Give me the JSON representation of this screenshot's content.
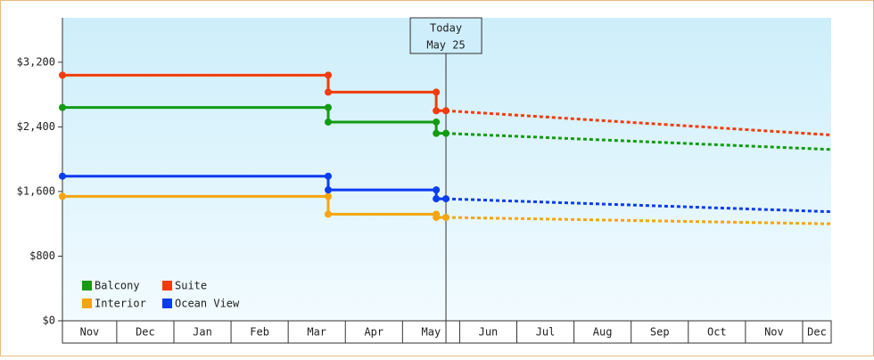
{
  "chart_data": {
    "type": "line",
    "x": [
      0.05,
      4.7,
      4.7,
      6.59,
      6.59,
      6.76
    ],
    "forecast_x": [
      6.76,
      13.5
    ],
    "xlim": [
      0.05,
      13.5
    ],
    "xticks": [
      1,
      2,
      3,
      4,
      5,
      6,
      7,
      8,
      9,
      10,
      11,
      12,
      13
    ],
    "x_labels": [
      "Nov",
      "Dec",
      "Jan",
      "Feb",
      "Mar",
      "Apr",
      "May",
      "Jun",
      "Jul",
      "Aug",
      "Sep",
      "Oct",
      "Nov",
      "Dec"
    ],
    "ylim": [
      0,
      3750
    ],
    "yticks": [
      {
        "value": 0,
        "label": "$0"
      },
      {
        "value": 800,
        "label": "$800"
      },
      {
        "value": 1600,
        "label": "$1,600"
      },
      {
        "value": 2400,
        "label": "$2,400"
      },
      {
        "value": 3200,
        "label": "$3,200"
      }
    ],
    "today": {
      "x": 6.76,
      "label": "Today",
      "date": "May 25"
    },
    "legend": "bottom-left",
    "series": [
      {
        "name": "Balcony",
        "color": "#139b13",
        "values": [
          2640,
          2640,
          2460,
          2460,
          2320,
          2320
        ],
        "forecast": [
          2320,
          2120
        ]
      },
      {
        "name": "Suite",
        "color": "#f23c0d",
        "values": [
          3040,
          3040,
          2830,
          2830,
          2600,
          2600
        ],
        "forecast": [
          2600,
          2300
        ]
      },
      {
        "name": "Interior",
        "color": "#f5a50f",
        "values": [
          1540,
          1540,
          1320,
          1320,
          1280,
          1280
        ],
        "forecast": [
          1280,
          1200
        ]
      },
      {
        "name": "Ocean View",
        "color": "#0a3cf0",
        "values": [
          1790,
          1790,
          1620,
          1620,
          1510,
          1510
        ],
        "forecast": [
          1510,
          1350
        ]
      }
    ]
  }
}
